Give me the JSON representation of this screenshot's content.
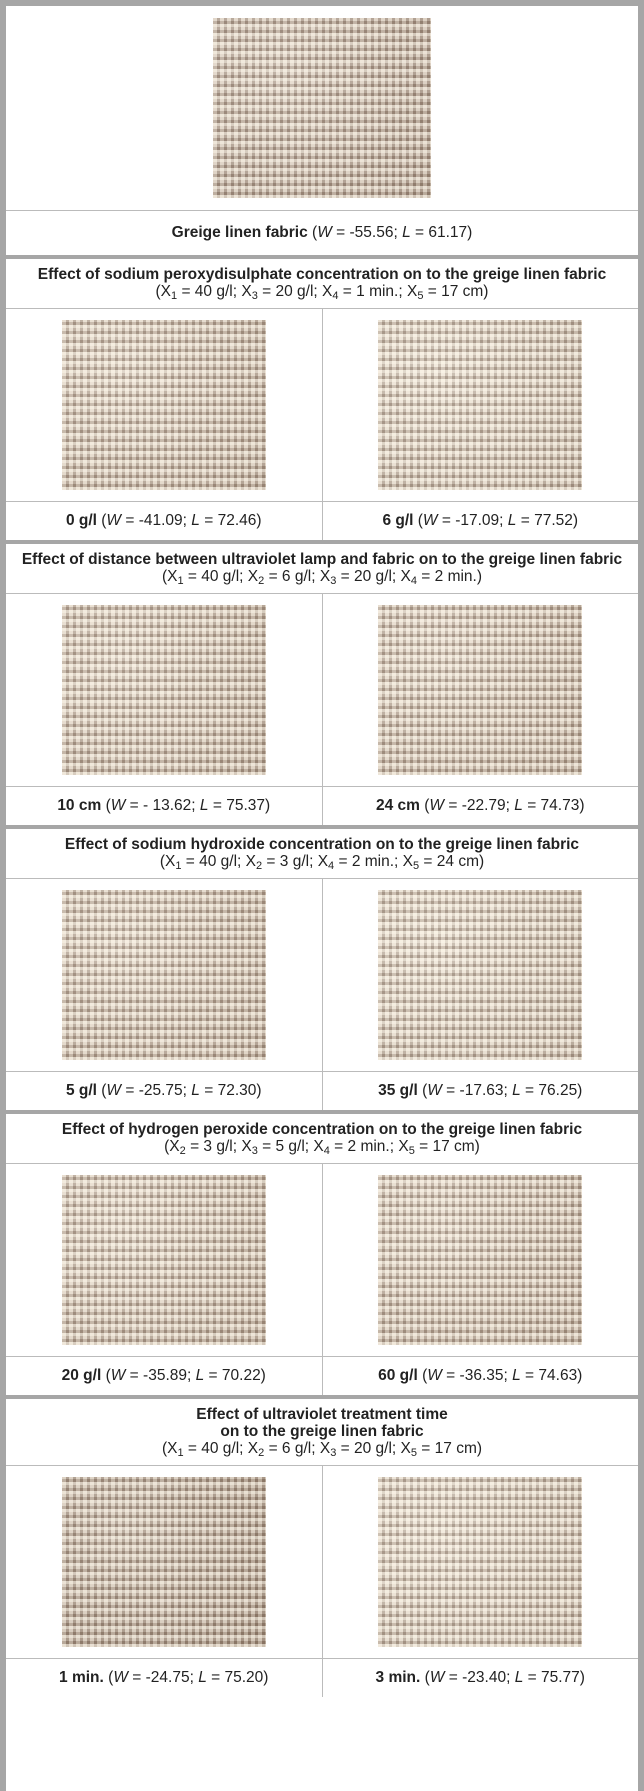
{
  "top": {
    "caption": [
      {
        "text": "Greige linen fabric",
        "style": "b"
      },
      {
        "text": " ("
      },
      {
        "text": "W",
        "style": "i"
      },
      {
        "text": " = -55.56; "
      },
      {
        "text": "L",
        "style": "i"
      },
      {
        "text": " = 61.17)"
      }
    ]
  },
  "sections": [
    {
      "title": [
        "Effect of sodium peroxydisulphate concentration on to the greige linen fabric"
      ],
      "conditions": [
        {
          "text": "(X"
        },
        {
          "text": "1",
          "style": "sub"
        },
        {
          "text": " = 40 g/l; X"
        },
        {
          "text": "3",
          "style": "sub"
        },
        {
          "text": " = 20 g/l; X"
        },
        {
          "text": "4",
          "style": "sub"
        },
        {
          "text": " = 1 min.; X"
        },
        {
          "text": "5",
          "style": "sub"
        },
        {
          "text": " = 17 cm)"
        }
      ],
      "cells": [
        {
          "caption": [
            {
              "text": "0 g/l",
              "style": "b"
            },
            {
              "text": " ("
            },
            {
              "text": "W",
              "style": "i"
            },
            {
              "text": " = -41.09; "
            },
            {
              "text": "L",
              "style": "i"
            },
            {
              "text": " = 72.46)"
            }
          ]
        },
        {
          "caption": [
            {
              "text": "6 g/l",
              "style": "b"
            },
            {
              "text": " ("
            },
            {
              "text": "W",
              "style": "i"
            },
            {
              "text": " = -17.09; "
            },
            {
              "text": "L",
              "style": "i"
            },
            {
              "text": " = 77.52)"
            }
          ]
        }
      ]
    },
    {
      "title": [
        "Effect of distance between ultraviolet lamp and fabric on to the greige linen fabric"
      ],
      "conditions": [
        {
          "text": "(X"
        },
        {
          "text": "1",
          "style": "sub"
        },
        {
          "text": " = 40 g/l; X"
        },
        {
          "text": "2",
          "style": "sub"
        },
        {
          "text": " = 6 g/l; X"
        },
        {
          "text": "3",
          "style": "sub"
        },
        {
          "text": " = 20 g/l; X"
        },
        {
          "text": "4",
          "style": "sub"
        },
        {
          "text": " = 2 min.)"
        }
      ],
      "cells": [
        {
          "caption": [
            {
              "text": "10 cm",
              "style": "b"
            },
            {
              "text": " ("
            },
            {
              "text": "W",
              "style": "i"
            },
            {
              "text": " = - 13.62; "
            },
            {
              "text": "L",
              "style": "i"
            },
            {
              "text": " = 75.37)"
            }
          ]
        },
        {
          "caption": [
            {
              "text": "24 cm",
              "style": "b"
            },
            {
              "text": " ("
            },
            {
              "text": "W",
              "style": "i"
            },
            {
              "text": " = -22.79; "
            },
            {
              "text": "L",
              "style": "i"
            },
            {
              "text": " = 74.73)"
            }
          ]
        }
      ]
    },
    {
      "title": [
        "Effect of sodium hydroxide concentration on to the greige linen fabric"
      ],
      "conditions": [
        {
          "text": "(X"
        },
        {
          "text": "1",
          "style": "sub"
        },
        {
          "text": " = 40 g/l; X"
        },
        {
          "text": "2",
          "style": "sub"
        },
        {
          "text": " = 3 g/l; X"
        },
        {
          "text": "4",
          "style": "sub"
        },
        {
          "text": " = 2 min.; X"
        },
        {
          "text": "5",
          "style": "sub"
        },
        {
          "text": " = 24 cm)"
        }
      ],
      "cells": [
        {
          "caption": [
            {
              "text": "5 g/l",
              "style": "b"
            },
            {
              "text": " ("
            },
            {
              "text": "W",
              "style": "i"
            },
            {
              "text": " = -25.75; "
            },
            {
              "text": "L",
              "style": "i"
            },
            {
              "text": " = 72.30)"
            }
          ]
        },
        {
          "caption": [
            {
              "text": "35 g/l",
              "style": "b"
            },
            {
              "text": " ("
            },
            {
              "text": "W",
              "style": "i"
            },
            {
              "text": " = -17.63; "
            },
            {
              "text": "L",
              "style": "i"
            },
            {
              "text": " = 76.25)"
            }
          ]
        }
      ]
    },
    {
      "title": [
        "Effect of hydrogen peroxide concentration on to the greige linen fabric"
      ],
      "conditions": [
        {
          "text": "(X"
        },
        {
          "text": "2",
          "style": "sub"
        },
        {
          "text": " = 3 g/l; X"
        },
        {
          "text": "3",
          "style": "sub"
        },
        {
          "text": " = 5 g/l; X"
        },
        {
          "text": "4",
          "style": "sub"
        },
        {
          "text": " = 2 min.; X"
        },
        {
          "text": "5",
          "style": "sub"
        },
        {
          "text": " = 17 cm)"
        }
      ],
      "cells": [
        {
          "caption": [
            {
              "text": "20 g/l",
              "style": "b"
            },
            {
              "text": " ("
            },
            {
              "text": "W",
              "style": "i"
            },
            {
              "text": " = -35.89; "
            },
            {
              "text": "L",
              "style": "i"
            },
            {
              "text": " = 70.22)"
            }
          ]
        },
        {
          "caption": [
            {
              "text": "60 g/l",
              "style": "b"
            },
            {
              "text": " ("
            },
            {
              "text": "W",
              "style": "i"
            },
            {
              "text": " = -36.35; "
            },
            {
              "text": "L",
              "style": "i"
            },
            {
              "text": " = 74.63)"
            }
          ]
        }
      ]
    },
    {
      "title": [
        "Effect of ultraviolet treatment time",
        "on to the greige linen fabric"
      ],
      "conditions": [
        {
          "text": "(X"
        },
        {
          "text": "1",
          "style": "sub"
        },
        {
          "text": " = 40 g/l; X"
        },
        {
          "text": "2",
          "style": "sub"
        },
        {
          "text": " = 6 g/l; X"
        },
        {
          "text": "3",
          "style": "sub"
        },
        {
          "text": " = 20 g/l; X"
        },
        {
          "text": "5",
          "style": "sub"
        },
        {
          "text": " = 17 cm)"
        }
      ],
      "cells": [
        {
          "caption": [
            {
              "text": "1 min.",
              "style": "b"
            },
            {
              "text": " ("
            },
            {
              "text": "W",
              "style": "i"
            },
            {
              "text": " = -24.75; "
            },
            {
              "text": "L",
              "style": "i"
            },
            {
              "text": " = 75.20)"
            }
          ]
        },
        {
          "caption": [
            {
              "text": "3 min.",
              "style": "b"
            },
            {
              "text": " ("
            },
            {
              "text": "W",
              "style": "i"
            },
            {
              "text": " = -23.40; "
            },
            {
              "text": "L",
              "style": "i"
            },
            {
              "text": " = 75.77)"
            }
          ]
        }
      ]
    }
  ]
}
